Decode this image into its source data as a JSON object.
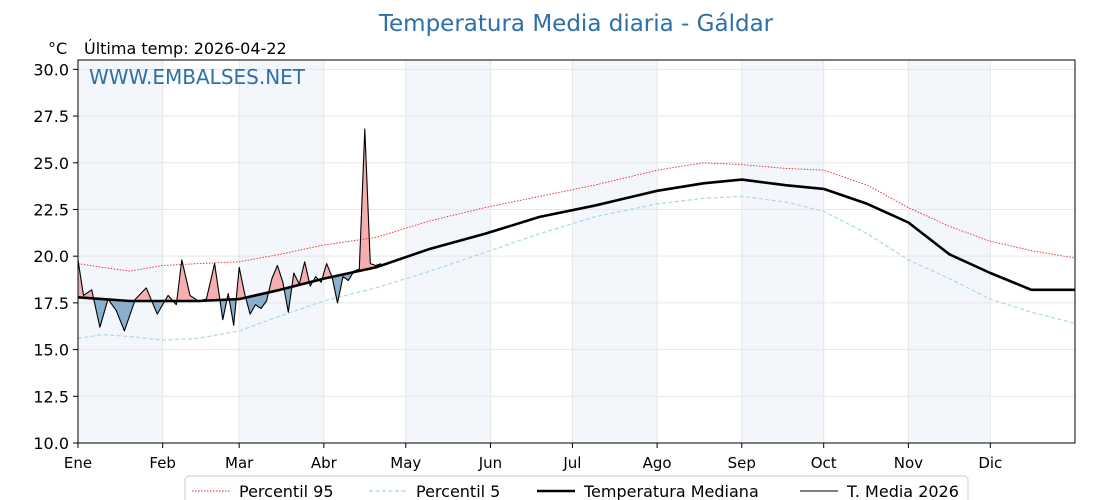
{
  "chart_data": {
    "type": "line",
    "title": "Temperatura Media diaria - Gáldar",
    "unit": "°C",
    "subtitle": "Última temp: 2026-04-22",
    "watermark": "WWW.EMBALSES.NET",
    "ylim": [
      10.0,
      30.5
    ],
    "xlim_days": [
      1,
      366
    ],
    "y_ticks": [
      "10.0",
      "12.5",
      "15.0",
      "17.5",
      "20.0",
      "22.5",
      "25.0",
      "27.5",
      "30.0"
    ],
    "y_tick_values": [
      10.0,
      12.5,
      15.0,
      17.5,
      20.0,
      22.5,
      25.0,
      27.5,
      30.0
    ],
    "x_ticks": [
      "Ene",
      "Feb",
      "Mar",
      "Abr",
      "May",
      "Jun",
      "Jul",
      "Ago",
      "Sep",
      "Oct",
      "Nov",
      "Dic"
    ],
    "x_tick_days": [
      1,
      32,
      60,
      91,
      121,
      152,
      182,
      213,
      244,
      274,
      305,
      335
    ],
    "grid": true,
    "shaded_months": [
      "Ene",
      "Mar",
      "May",
      "Jul",
      "Sep",
      "Nov"
    ],
    "legend_position": "bottom",
    "series": [
      {
        "name": "Percentil 95",
        "color": "#e8262b",
        "style": "dotted",
        "x": [
          1,
          10,
          20,
          32,
          45,
          60,
          75,
          91,
          110,
          130,
          150,
          170,
          190,
          213,
          230,
          244,
          260,
          274,
          290,
          305,
          320,
          335,
          350,
          366
        ],
        "y": [
          19.6,
          19.4,
          19.2,
          19.5,
          19.6,
          19.7,
          20.1,
          20.6,
          21.0,
          21.9,
          22.6,
          23.2,
          23.8,
          24.6,
          25.0,
          24.9,
          24.7,
          24.6,
          23.8,
          22.6,
          21.6,
          20.8,
          20.3,
          19.9
        ]
      },
      {
        "name": "Percentil 5",
        "color": "#a9d8e6",
        "style": "dashed",
        "x": [
          1,
          10,
          20,
          32,
          45,
          60,
          75,
          91,
          110,
          130,
          150,
          170,
          190,
          213,
          230,
          244,
          260,
          274,
          290,
          305,
          320,
          335,
          350,
          366
        ],
        "y": [
          15.6,
          15.8,
          15.7,
          15.5,
          15.6,
          16.0,
          16.8,
          17.6,
          18.3,
          19.2,
          20.2,
          21.2,
          22.1,
          22.8,
          23.1,
          23.2,
          22.9,
          22.4,
          21.2,
          19.8,
          18.8,
          17.7,
          17.0,
          16.4
        ]
      },
      {
        "name": "Temperatura Mediana",
        "color": "#000000",
        "style": "thick",
        "x": [
          1,
          10,
          20,
          32,
          45,
          60,
          75,
          91,
          110,
          130,
          150,
          170,
          190,
          213,
          230,
          244,
          260,
          274,
          290,
          305,
          320,
          335,
          350,
          366
        ],
        "y": [
          17.8,
          17.7,
          17.6,
          17.6,
          17.6,
          17.7,
          18.2,
          18.8,
          19.4,
          20.4,
          21.2,
          22.1,
          22.7,
          23.5,
          23.9,
          24.1,
          23.8,
          23.6,
          22.8,
          21.8,
          20.1,
          19.1,
          18.2,
          18.2
        ]
      },
      {
        "name": "T. Media 2026",
        "color": "#000000",
        "style": "thin",
        "x": [
          1,
          3,
          6,
          9,
          12,
          15,
          18,
          22,
          26,
          30,
          34,
          37,
          39,
          42,
          45,
          48,
          51,
          54,
          56,
          58,
          60,
          62,
          64,
          66,
          68,
          70,
          72,
          74,
          76,
          78,
          80,
          82,
          84,
          86,
          88,
          90,
          92,
          94,
          96,
          98,
          100,
          102,
          104,
          106,
          108,
          110,
          112
        ],
        "y": [
          19.8,
          17.9,
          18.2,
          16.2,
          17.7,
          17.1,
          16.0,
          17.7,
          18.3,
          16.9,
          17.9,
          17.4,
          19.8,
          17.9,
          17.6,
          17.7,
          19.6,
          16.6,
          18.0,
          16.3,
          19.4,
          18.0,
          16.9,
          17.4,
          17.2,
          17.6,
          18.8,
          19.5,
          18.6,
          17.0,
          19.1,
          18.5,
          19.7,
          18.4,
          18.9,
          18.6,
          19.6,
          18.9,
          17.5,
          18.9,
          18.7,
          19.2,
          19.3,
          26.8,
          19.6,
          19.5,
          19.6
        ]
      }
    ]
  }
}
